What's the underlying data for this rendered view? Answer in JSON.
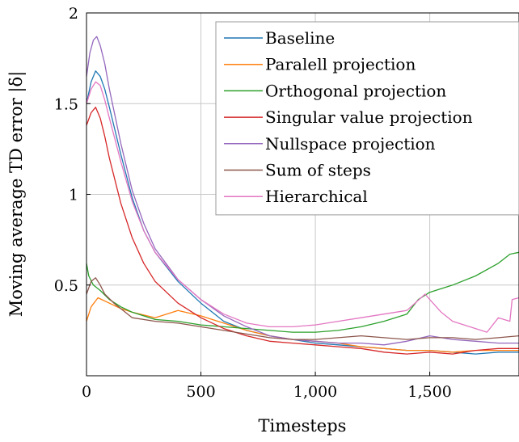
{
  "chart_data": {
    "type": "line",
    "xlabel": "Timesteps",
    "ylabel": "Moving average TD error |δ|",
    "xlim": [
      0,
      1890
    ],
    "ylim": [
      0,
      2
    ],
    "xticks": [
      0,
      500,
      1000,
      1500
    ],
    "xtick_labels": [
      "0",
      "500",
      "1,000",
      "1,500"
    ],
    "yticks": [
      0.5,
      1,
      1.5,
      2
    ],
    "ytick_labels": [
      "0.5",
      "1",
      "1.5",
      "2"
    ],
    "grid": true,
    "legend_position": "top-right",
    "series": [
      {
        "name": "Baseline",
        "color": "#1f77b4",
        "x": [
          0,
          20,
          40,
          60,
          80,
          100,
          150,
          200,
          250,
          300,
          400,
          500,
          600,
          700,
          800,
          900,
          1000,
          1100,
          1200,
          1300,
          1400,
          1500,
          1600,
          1700,
          1800,
          1890
        ],
        "y": [
          1.5,
          1.62,
          1.68,
          1.65,
          1.58,
          1.48,
          1.22,
          0.98,
          0.8,
          0.68,
          0.52,
          0.4,
          0.3,
          0.25,
          0.22,
          0.2,
          0.18,
          0.17,
          0.16,
          0.15,
          0.14,
          0.14,
          0.13,
          0.12,
          0.13,
          0.13
        ]
      },
      {
        "name": "Paralell projection",
        "color": "#ff7f0e",
        "x": [
          0,
          20,
          50,
          100,
          150,
          200,
          300,
          400,
          500,
          600,
          700,
          800,
          900,
          1000,
          1100,
          1200,
          1300,
          1400,
          1500,
          1600,
          1700,
          1800,
          1890
        ],
        "y": [
          0.3,
          0.38,
          0.43,
          0.4,
          0.37,
          0.35,
          0.32,
          0.36,
          0.33,
          0.29,
          0.25,
          0.22,
          0.2,
          0.19,
          0.18,
          0.16,
          0.15,
          0.14,
          0.14,
          0.13,
          0.14,
          0.14,
          0.14
        ]
      },
      {
        "name": "Orthogonal projection",
        "color": "#2ca02c",
        "x": [
          0,
          10,
          30,
          60,
          100,
          150,
          200,
          300,
          400,
          500,
          600,
          700,
          800,
          900,
          1000,
          1100,
          1200,
          1300,
          1400,
          1450,
          1500,
          1600,
          1700,
          1800,
          1850,
          1890
        ],
        "y": [
          0.62,
          0.55,
          0.5,
          0.47,
          0.42,
          0.38,
          0.35,
          0.31,
          0.3,
          0.28,
          0.27,
          0.26,
          0.25,
          0.24,
          0.24,
          0.25,
          0.27,
          0.3,
          0.34,
          0.42,
          0.46,
          0.5,
          0.55,
          0.62,
          0.67,
          0.68
        ]
      },
      {
        "name": "Singular value projection",
        "color": "#d62728",
        "x": [
          0,
          20,
          40,
          60,
          80,
          100,
          150,
          200,
          250,
          300,
          400,
          500,
          600,
          700,
          800,
          900,
          1000,
          1100,
          1200,
          1300,
          1400,
          1500,
          1600,
          1700,
          1800,
          1890
        ],
        "y": [
          1.38,
          1.45,
          1.48,
          1.42,
          1.32,
          1.2,
          0.95,
          0.76,
          0.62,
          0.52,
          0.4,
          0.32,
          0.26,
          0.22,
          0.19,
          0.18,
          0.17,
          0.16,
          0.15,
          0.13,
          0.12,
          0.13,
          0.12,
          0.14,
          0.15,
          0.15
        ]
      },
      {
        "name": "Nullspace projection",
        "color": "#9467bd",
        "x": [
          0,
          15,
          30,
          45,
          60,
          80,
          100,
          150,
          200,
          250,
          300,
          400,
          500,
          600,
          700,
          800,
          900,
          1000,
          1100,
          1200,
          1300,
          1400,
          1500,
          1600,
          1700,
          1800,
          1890
        ],
        "y": [
          1.65,
          1.78,
          1.85,
          1.87,
          1.82,
          1.72,
          1.58,
          1.28,
          1.02,
          0.84,
          0.7,
          0.53,
          0.42,
          0.33,
          0.27,
          0.22,
          0.2,
          0.19,
          0.18,
          0.18,
          0.17,
          0.19,
          0.22,
          0.2,
          0.19,
          0.18,
          0.18
        ]
      },
      {
        "name": "Sum of steps",
        "color": "#8c564b",
        "x": [
          0,
          20,
          40,
          60,
          80,
          120,
          160,
          200,
          300,
          400,
          500,
          600,
          700,
          800,
          900,
          1000,
          1100,
          1200,
          1300,
          1400,
          1500,
          1600,
          1700,
          1800,
          1890
        ],
        "y": [
          0.45,
          0.52,
          0.54,
          0.5,
          0.45,
          0.4,
          0.36,
          0.32,
          0.3,
          0.29,
          0.27,
          0.25,
          0.23,
          0.21,
          0.2,
          0.2,
          0.21,
          0.22,
          0.21,
          0.2,
          0.21,
          0.21,
          0.2,
          0.21,
          0.22
        ]
      },
      {
        "name": "Hierarchical",
        "color": "#e377c2",
        "x": [
          0,
          20,
          40,
          60,
          80,
          100,
          150,
          200,
          250,
          300,
          400,
          500,
          600,
          700,
          800,
          900,
          1000,
          1100,
          1200,
          1300,
          1400,
          1480,
          1500,
          1550,
          1600,
          1700,
          1750,
          1800,
          1850,
          1860,
          1890
        ],
        "y": [
          1.5,
          1.58,
          1.62,
          1.6,
          1.52,
          1.42,
          1.18,
          0.96,
          0.8,
          0.68,
          0.53,
          0.42,
          0.34,
          0.29,
          0.27,
          0.27,
          0.28,
          0.3,
          0.32,
          0.34,
          0.36,
          0.45,
          0.42,
          0.35,
          0.3,
          0.26,
          0.24,
          0.32,
          0.3,
          0.42,
          0.43
        ]
      }
    ]
  }
}
